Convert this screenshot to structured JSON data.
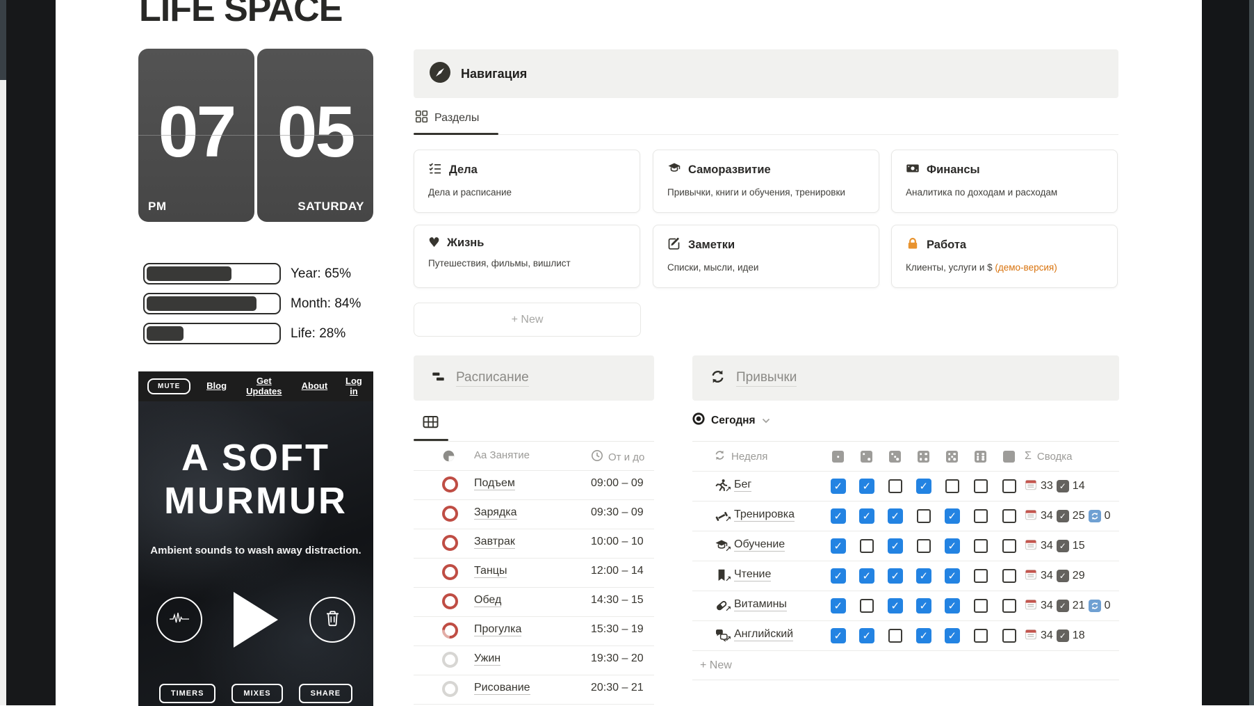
{
  "title": "LIFE SPACE",
  "clock": {
    "hour": "07",
    "minute": "05",
    "meridiem": "PM",
    "day": "SATURDAY"
  },
  "progress": {
    "items": [
      {
        "label": "Year: 65%",
        "pct": 65
      },
      {
        "label": "Month: 84%",
        "pct": 84
      },
      {
        "label": "Life: 28%",
        "pct": 28
      }
    ]
  },
  "murmur": {
    "mute_label": "MUTE",
    "nav_links": [
      "Blog",
      "Get Updates",
      "About",
      "Log in"
    ],
    "title_top": "A SOFT",
    "title_bottom": "MURMUR",
    "tagline": "Ambient sounds to wash away distraction.",
    "footer_buttons": [
      "TIMERS",
      "MIXES",
      "SHARE"
    ]
  },
  "navigation": {
    "callout_title": "Навигация",
    "tab_label": "Разделы",
    "new_button": "+ New",
    "cards": [
      {
        "icon": "checklist-icon",
        "title": "Дела",
        "subtitle": "Дела и расписание"
      },
      {
        "icon": "education-icon",
        "title": "Саморазвитие",
        "subtitle": "Привычки, книги и обучения, тренировки"
      },
      {
        "icon": "money-icon",
        "title": "Финансы",
        "subtitle": "Аналитика по доходам и расходам"
      },
      {
        "icon": "heart-icon",
        "title": "Жизнь",
        "subtitle": "Путешествия, фильмы, вишлист"
      },
      {
        "icon": "note-icon",
        "title": "Заметки",
        "subtitle": "Списки, мысли, идеи"
      },
      {
        "icon": "lock-icon",
        "title": "Работа",
        "subtitle": "Клиенты, услуги и $ ",
        "subtitle_accent": "(демо-версия)"
      }
    ]
  },
  "schedule": {
    "section_title": "Расписание",
    "header": {
      "name_type": "Aa",
      "name": "Занятие",
      "time": "От и до"
    },
    "rows": [
      {
        "name": "Подъем",
        "time": "09:00 – 09",
        "status": "red"
      },
      {
        "name": "Зарядка",
        "time": "09:30 – 09",
        "status": "red"
      },
      {
        "name": "Завтрак",
        "time": "10:00 – 10",
        "status": "red"
      },
      {
        "name": "Танцы",
        "time": "12:00 – 14",
        "status": "red"
      },
      {
        "name": "Обед",
        "time": "14:30 – 15",
        "status": "red"
      },
      {
        "name": "Прогулка",
        "time": "15:30 – 19",
        "status": "red-partial"
      },
      {
        "name": "Ужин",
        "time": "19:30 – 20",
        "status": "gray"
      },
      {
        "name": "Рисование",
        "time": "20:30 – 21",
        "status": "gray"
      },
      {
        "name": "",
        "time": "",
        "status": "gray"
      }
    ]
  },
  "habits": {
    "section_title": "Привычки",
    "view_label": "Сегодня",
    "week_label": "Неделя",
    "sum_prefix": "Σ",
    "summary_label": "Сводка",
    "new_button": "+ New",
    "rows": [
      {
        "icon": "runner-icon",
        "name": "Бег",
        "checks": [
          1,
          1,
          0,
          1,
          0,
          0,
          0
        ],
        "days": 33,
        "done": 14,
        "skips": null
      },
      {
        "icon": "dumbbell-icon",
        "name": "Тренировка",
        "checks": [
          1,
          1,
          1,
          0,
          1,
          0,
          0
        ],
        "days": 34,
        "done": 25,
        "skips": 0
      },
      {
        "icon": "education-icon",
        "name": "Обучение",
        "checks": [
          1,
          0,
          1,
          0,
          1,
          0,
          0
        ],
        "days": 34,
        "done": 15,
        "skips": null
      },
      {
        "icon": "bookmark-icon",
        "name": "Чтение",
        "checks": [
          1,
          1,
          1,
          1,
          1,
          0,
          0
        ],
        "days": 34,
        "done": 29,
        "skips": null
      },
      {
        "icon": "pill-icon",
        "name": "Витамины",
        "checks": [
          1,
          0,
          1,
          1,
          1,
          0,
          0
        ],
        "days": 34,
        "done": 21,
        "skips": 0
      },
      {
        "icon": "language-icon",
        "name": "Английский",
        "checks": [
          1,
          1,
          0,
          1,
          1,
          0,
          0
        ],
        "days": 34,
        "done": 18,
        "skips": null
      }
    ]
  },
  "colors": {
    "accent_orange": "#d9730d",
    "check_blue": "#2383e2",
    "ring_red": "#bf4d44"
  }
}
